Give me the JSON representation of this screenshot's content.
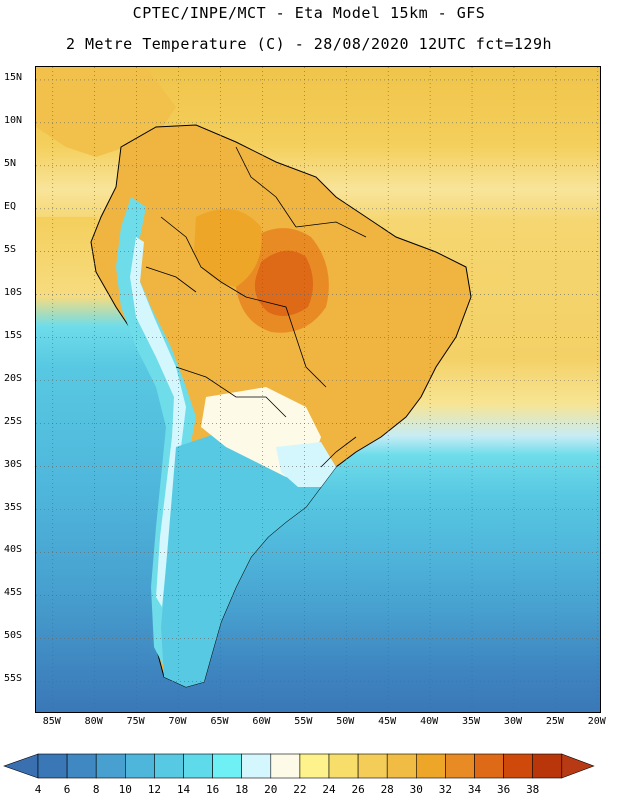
{
  "header": {
    "line1": "CPTEC/INPE/MCT -  Eta Model 15km - GFS",
    "line2": "2 Metre Temperature (C) - 28/08/2020 12UTC fct=129h"
  },
  "map": {
    "lat_labels": [
      "15N",
      "10N",
      "5N",
      "EQ",
      "5S",
      "10S",
      "15S",
      "20S",
      "25S",
      "30S",
      "35S",
      "40S",
      "45S",
      "50S",
      "55S"
    ],
    "lat_values": [
      15,
      10,
      5,
      0,
      -5,
      -10,
      -15,
      -20,
      -25,
      -30,
      -35,
      -40,
      -45,
      -50,
      -55
    ],
    "lon_labels": [
      "85W",
      "80W",
      "75W",
      "70W",
      "65W",
      "60W",
      "55W",
      "50W",
      "45W",
      "40W",
      "35W",
      "30W",
      "25W",
      "20W"
    ],
    "lon_values": [
      -85,
      -80,
      -75,
      -70,
      -65,
      -60,
      -55,
      -50,
      -45,
      -40,
      -35,
      -30,
      -25,
      -20
    ]
  },
  "colorbar": {
    "labels": [
      "4",
      "6",
      "8",
      "10",
      "12",
      "14",
      "16",
      "18",
      "20",
      "22",
      "24",
      "26",
      "28",
      "30",
      "32",
      "34",
      "36",
      "38"
    ],
    "colors": [
      "#3a77b7",
      "#3f88c2",
      "#47a0cf",
      "#4fb6db",
      "#58c9e2",
      "#5edaea",
      "#6ff0f5",
      "#d4f6fd",
      "#fdfbe7",
      "#fdf28b",
      "#f7de6a",
      "#f4cd58",
      "#f0bc43",
      "#eda627",
      "#e88b24",
      "#de6917",
      "#cf4a0a",
      "#b8360a"
    ],
    "under_color": "#3a6fb0",
    "over_color": "#b83a14"
  }
}
